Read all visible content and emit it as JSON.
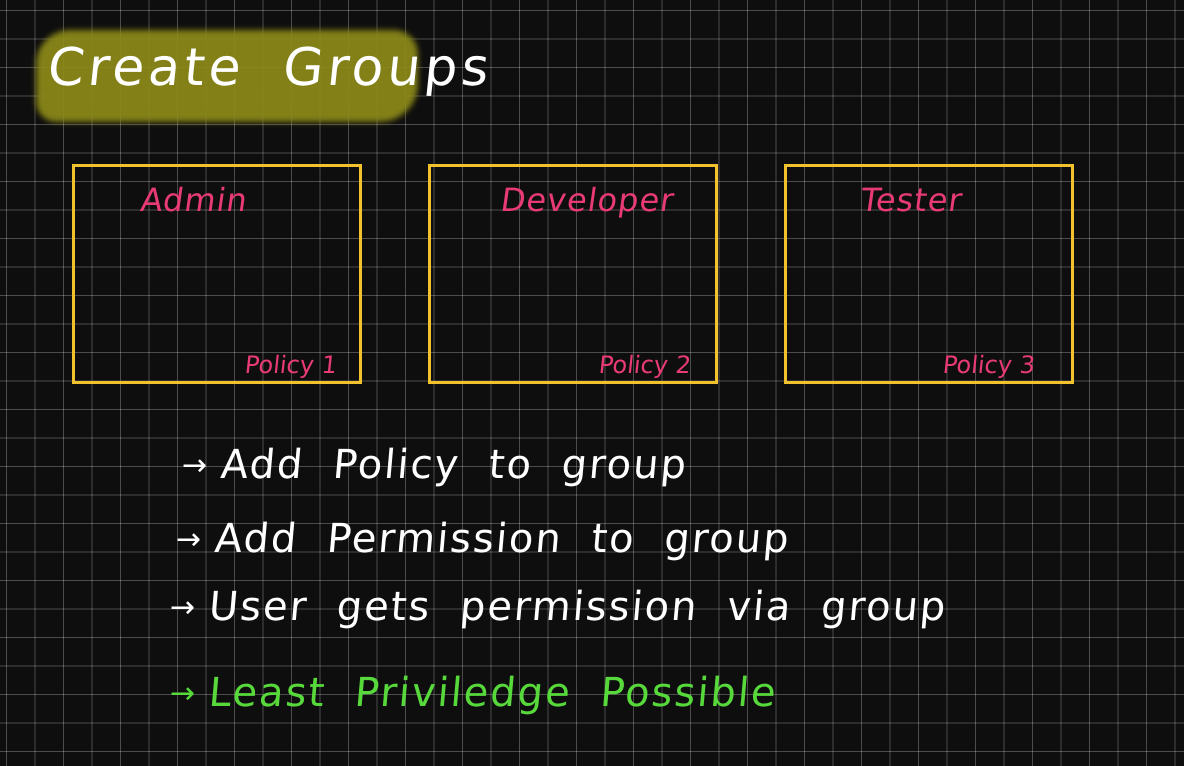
{
  "title": "Create Groups",
  "groups": [
    {
      "name": "Admin",
      "policy": "Policy 1"
    },
    {
      "name": "Developer",
      "policy": "Policy 2"
    },
    {
      "name": "Tester",
      "policy": "Policy 3"
    }
  ],
  "points": [
    {
      "arrow": "→",
      "text": "Add Policy to group"
    },
    {
      "arrow": "→",
      "text": "Add Permission to group"
    },
    {
      "arrow": "→",
      "text": "User gets permission via group"
    },
    {
      "arrow": "→",
      "text": "Least Priviledge Possible"
    }
  ],
  "colors": {
    "background": "#0e0e0e",
    "grid": "#ffffff",
    "title_highlight": "#8c8a18",
    "box_border": "#f2c12e",
    "group_text": "#e83a76",
    "note_text": "#ffffff",
    "emphasis_text": "#57d93b"
  }
}
